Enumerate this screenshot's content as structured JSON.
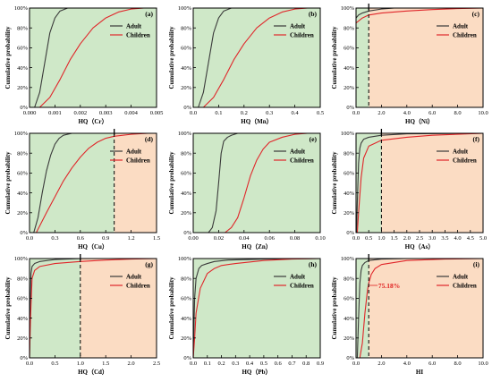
{
  "colors": {
    "green_region": "#cfe8c8",
    "orange_region": "#fbdcc3",
    "adult": "#3a3a3a",
    "children": "#e0262a",
    "threshold_line": "#000000",
    "annotation": "#e02020"
  },
  "chart_data": [
    {
      "panel": "(a)",
      "type": "line",
      "xlabel": "HQ（Cr）",
      "ylabel": "Cumulative probability",
      "xlim": [
        0,
        0.005
      ],
      "ylim": [
        0,
        100
      ],
      "xticks": [
        "0.000",
        "0.001",
        "0.002",
        "0.003",
        "0.004",
        "0.005"
      ],
      "yticks": [
        "0%",
        "20%",
        "40%",
        "60%",
        "80%",
        "100%"
      ],
      "threshold": null,
      "annotation": null,
      "series": [
        {
          "name": "Adult",
          "x": [
            0.0002,
            0.0004,
            0.0006,
            0.0008,
            0.001,
            0.0012,
            0.0015,
            0.002
          ],
          "y": [
            0,
            15,
            45,
            75,
            90,
            97,
            100,
            100
          ]
        },
        {
          "name": "Children",
          "x": [
            0.0004,
            0.0008,
            0.0012,
            0.0016,
            0.002,
            0.0025,
            0.003,
            0.0035,
            0.004,
            0.0045
          ],
          "y": [
            0,
            10,
            28,
            48,
            64,
            80,
            90,
            96,
            99,
            100
          ]
        }
      ]
    },
    {
      "panel": "(b)",
      "type": "line",
      "xlabel": "HQ（Mn）",
      "ylabel": "Cumulative probability",
      "xlim": [
        0,
        0.5
      ],
      "ylim": [
        0,
        100
      ],
      "xticks": [
        "0.0",
        "0.1",
        "0.2",
        "0.3",
        "0.4",
        "0.5"
      ],
      "yticks": [
        "0%",
        "20%",
        "40%",
        "60%",
        "80%",
        "100%"
      ],
      "threshold": null,
      "annotation": null,
      "series": [
        {
          "name": "Adult",
          "x": [
            0.02,
            0.04,
            0.06,
            0.08,
            0.1,
            0.12,
            0.15,
            0.2
          ],
          "y": [
            0,
            15,
            45,
            75,
            90,
            97,
            100,
            100
          ]
        },
        {
          "name": "Children",
          "x": [
            0.04,
            0.08,
            0.12,
            0.16,
            0.2,
            0.25,
            0.3,
            0.35,
            0.4,
            0.45
          ],
          "y": [
            0,
            10,
            28,
            48,
            64,
            80,
            90,
            96,
            99,
            100
          ]
        }
      ]
    },
    {
      "panel": "(c)",
      "type": "line",
      "xlabel": "HQ（Ni）",
      "ylabel": "Cumulative probability",
      "xlim": [
        0,
        10
      ],
      "ylim": [
        0,
        100
      ],
      "xticks": [
        "0.0",
        "2.0",
        "4.0",
        "6.0",
        "8.0",
        "10.0"
      ],
      "yticks": [
        "0%",
        "20%",
        "40%",
        "60%",
        "80%",
        "100%"
      ],
      "threshold": 1,
      "annotation": null,
      "series": [
        {
          "name": "Adult",
          "x": [
            0,
            0.2,
            0.5,
            1,
            2,
            3,
            10
          ],
          "y": [
            90,
            93,
            95,
            97,
            99,
            100,
            100
          ]
        },
        {
          "name": "Children",
          "x": [
            0,
            0.5,
            1,
            2,
            4,
            6,
            8,
            10
          ],
          "y": [
            85,
            90,
            93,
            95,
            97,
            98.5,
            99.5,
            100
          ]
        }
      ]
    },
    {
      "panel": "(d)",
      "type": "line",
      "xlabel": "HQ（Cu）",
      "ylabel": "Cumulative probability",
      "xlim": [
        0,
        1.5
      ],
      "ylim": [
        0,
        100
      ],
      "xticks": [
        "0.0",
        "0.3",
        "0.6",
        "0.9",
        "1.2",
        "1.5"
      ],
      "yticks": [
        "0%",
        "20%",
        "40%",
        "60%",
        "80%",
        "100%"
      ],
      "threshold": 1,
      "annotation": null,
      "series": [
        {
          "name": "Adult",
          "x": [
            0.05,
            0.1,
            0.15,
            0.2,
            0.25,
            0.3,
            0.35,
            0.4,
            0.5
          ],
          "y": [
            0,
            15,
            40,
            62,
            78,
            89,
            95,
            98,
            100
          ]
        },
        {
          "name": "Children",
          "x": [
            0.08,
            0.2,
            0.3,
            0.4,
            0.5,
            0.6,
            0.7,
            0.8,
            0.9,
            1.0,
            1.2,
            1.4
          ],
          "y": [
            0,
            20,
            36,
            52,
            65,
            76,
            85,
            91,
            95,
            97,
            99,
            100
          ]
        }
      ]
    },
    {
      "panel": "(e)",
      "type": "line",
      "xlabel": "HQ（Zn）",
      "ylabel": "Cumulative probability",
      "xlim": [
        0,
        0.1
      ],
      "ylim": [
        0,
        100
      ],
      "xticks": [
        "0.00",
        "0.02",
        "0.04",
        "0.06",
        "0.08",
        "0.10"
      ],
      "yticks": [
        "0%",
        "20%",
        "40%",
        "60%",
        "80%",
        "100%"
      ],
      "threshold": null,
      "annotation": null,
      "series": [
        {
          "name": "Adult",
          "x": [
            0.012,
            0.015,
            0.018,
            0.02,
            0.022,
            0.024,
            0.027,
            0.03,
            0.035
          ],
          "y": [
            0,
            5,
            22,
            50,
            80,
            92,
            96,
            98,
            100
          ]
        },
        {
          "name": "Children",
          "x": [
            0.025,
            0.03,
            0.035,
            0.04,
            0.045,
            0.05,
            0.055,
            0.06,
            0.07,
            0.08,
            0.09
          ],
          "y": [
            0,
            5,
            15,
            35,
            57,
            73,
            84,
            91,
            96,
            99,
            100
          ]
        }
      ]
    },
    {
      "panel": "(f)",
      "type": "line",
      "xlabel": "HQ（As）",
      "ylabel": "Cumulative probability",
      "xlim": [
        0,
        5
      ],
      "ylim": [
        0,
        100
      ],
      "xticks": [
        "0.0",
        "0.5",
        "1.0",
        "1.5",
        "2.0",
        "2.5",
        "3.0",
        "3.5",
        "4.0",
        "4.5",
        "5.0"
      ],
      "yticks": [
        "0%",
        "20%",
        "40%",
        "60%",
        "80%",
        "100%"
      ],
      "threshold": 1,
      "annotation": null,
      "series": [
        {
          "name": "Adult",
          "x": [
            0.02,
            0.05,
            0.1,
            0.15,
            0.2,
            0.3,
            0.5,
            1,
            2,
            5
          ],
          "y": [
            0,
            30,
            70,
            85,
            90,
            94,
            96,
            98,
            99.5,
            100
          ]
        },
        {
          "name": "Children",
          "x": [
            0.05,
            0.1,
            0.2,
            0.3,
            0.5,
            1,
            2,
            3,
            4,
            5
          ],
          "y": [
            0,
            20,
            55,
            75,
            87,
            93,
            96,
            98,
            99,
            100
          ]
        }
      ]
    },
    {
      "panel": "(g)",
      "type": "line",
      "xlabel": "HQ（Cd）",
      "ylabel": "Cumulative probability",
      "xlim": [
        0,
        2.5
      ],
      "ylim": [
        0,
        100
      ],
      "xticks": [
        "0.0",
        "0.5",
        "1.0",
        "1.5",
        "2.0",
        "2.5"
      ],
      "yticks": [
        "0%",
        "20%",
        "40%",
        "60%",
        "80%",
        "100%"
      ],
      "threshold": 1,
      "annotation": null,
      "series": [
        {
          "name": "Adult",
          "x": [
            0,
            0.01,
            0.03,
            0.05,
            0.1,
            0.2,
            0.5,
            1,
            2.5
          ],
          "y": [
            0,
            50,
            85,
            92,
            95,
            97,
            99,
            100,
            100
          ]
        },
        {
          "name": "Children",
          "x": [
            0,
            0.02,
            0.05,
            0.1,
            0.2,
            0.5,
            1,
            1.5,
            2,
            2.5
          ],
          "y": [
            0,
            40,
            80,
            88,
            92,
            95,
            97,
            98.5,
            99.5,
            100
          ]
        }
      ]
    },
    {
      "panel": "(h)",
      "type": "line",
      "xlabel": "HQ（Pb）",
      "ylabel": "Cumulative probability",
      "xlim": [
        0,
        0.9
      ],
      "ylim": [
        0,
        100
      ],
      "xticks": [
        "0.0",
        "0.1",
        "0.2",
        "0.3",
        "0.4",
        "0.5",
        "0.6",
        "0.7",
        "0.8",
        "0.9"
      ],
      "yticks": [
        "0%",
        "20%",
        "40%",
        "60%",
        "80%",
        "100%"
      ],
      "threshold": null,
      "annotation": null,
      "series": [
        {
          "name": "Adult",
          "x": [
            0,
            0.005,
            0.01,
            0.02,
            0.04,
            0.06,
            0.1,
            0.15,
            0.25,
            0.5,
            0.9
          ],
          "y": [
            0,
            30,
            60,
            80,
            90,
            93,
            95,
            97,
            98.5,
            99.5,
            100
          ]
        },
        {
          "name": "Children",
          "x": [
            0,
            0.01,
            0.02,
            0.05,
            0.1,
            0.15,
            0.2,
            0.3,
            0.5,
            0.7,
            0.9
          ],
          "y": [
            0,
            20,
            45,
            70,
            85,
            90,
            93,
            95,
            98,
            99.5,
            100
          ]
        }
      ]
    },
    {
      "panel": "(i)",
      "type": "line",
      "xlabel": "HI",
      "ylabel": "Cumulative probability",
      "xlim": [
        0,
        10
      ],
      "ylim": [
        0,
        100
      ],
      "xticks": [
        "0.0",
        "2.0",
        "4.0",
        "6.0",
        "8.0",
        "10.0"
      ],
      "yticks": [
        "0%",
        "20%",
        "40%",
        "60%",
        "80%",
        "100%"
      ],
      "threshold": 1,
      "annotation": "75.18%",
      "series": [
        {
          "name": "Adult",
          "x": [
            0.1,
            0.2,
            0.3,
            0.4,
            0.5,
            0.7,
            1,
            2,
            4,
            10
          ],
          "y": [
            0,
            40,
            75,
            88,
            93,
            96,
            98,
            99.5,
            100,
            100
          ]
        },
        {
          "name": "Children",
          "x": [
            0.3,
            0.5,
            0.7,
            0.9,
            1.0,
            1.2,
            1.5,
            2,
            4,
            7,
            10
          ],
          "y": [
            0,
            15,
            45,
            68,
            75.18,
            84,
            90,
            94,
            98,
            99.5,
            100
          ]
        }
      ]
    }
  ]
}
